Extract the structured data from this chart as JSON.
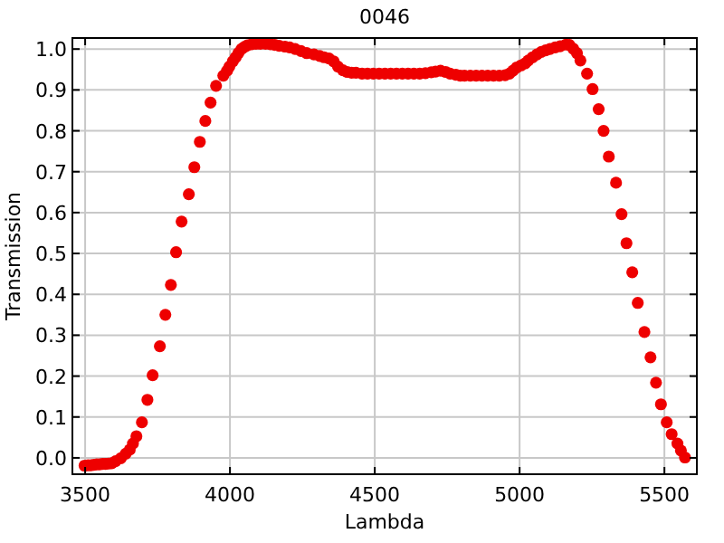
{
  "chart_data": {
    "type": "scatter",
    "title": "0046",
    "xlabel": "Lambda",
    "ylabel": "Transmission",
    "xlim": [
      3456,
      5612
    ],
    "ylim": [
      -0.04,
      1.027
    ],
    "xticks": [
      3500,
      4000,
      4500,
      5000,
      5500
    ],
    "yticks": [
      {
        "value": 0,
        "label": "0.0"
      },
      0.1,
      0.2,
      0.3,
      0.4,
      0.5,
      0.6,
      0.7,
      0.8,
      0.9,
      {
        "value": 1,
        "label": "1.0"
      }
    ],
    "grid": true,
    "marker": "circle",
    "series": [
      {
        "color": "#ee0000",
        "x": [
          3498,
          3510,
          3520,
          3530,
          3540,
          3550,
          3560,
          3570,
          3580,
          3592,
          3605,
          3623,
          3640,
          3654,
          3665,
          3677,
          3696,
          3715,
          3733,
          3758,
          3777,
          3796,
          3814,
          3833,
          3858,
          3877,
          3896,
          3915,
          3933,
          3952,
          3977,
          3990,
          3998,
          4010,
          4020,
          4029,
          4040,
          4050,
          4060,
          4075,
          4090,
          4105,
          4123,
          4140,
          4155,
          4170,
          4190,
          4206,
          4225,
          4245,
          4265,
          4290,
          4310,
          4325,
          4342,
          4358,
          4373,
          4390,
          4405,
          4420,
          4435,
          4456,
          4475,
          4495,
          4515,
          4535,
          4555,
          4575,
          4595,
          4615,
          4635,
          4655,
          4675,
          4695,
          4710,
          4727,
          4745,
          4760,
          4780,
          4795,
          4810,
          4830,
          4850,
          4870,
          4890,
          4910,
          4930,
          4950,
          4965,
          4977,
          4990,
          5005,
          5019,
          5030,
          5045,
          5060,
          5075,
          5090,
          5105,
          5123,
          5140,
          5160,
          5172,
          5185,
          5198,
          5210,
          5233,
          5252,
          5273,
          5290,
          5308,
          5333,
          5352,
          5369,
          5389,
          5408,
          5431,
          5452,
          5471,
          5488,
          5508,
          5525,
          5545,
          5557,
          5571
        ],
        "values": [
          -0.019,
          -0.018,
          -0.018,
          -0.017,
          -0.016,
          -0.016,
          -0.015,
          -0.015,
          -0.014,
          -0.013,
          -0.008,
          -0.001,
          0.01,
          0.02,
          0.035,
          0.053,
          0.087,
          0.142,
          0.202,
          0.273,
          0.35,
          0.423,
          0.503,
          0.578,
          0.645,
          0.711,
          0.773,
          0.824,
          0.869,
          0.91,
          0.935,
          0.947,
          0.957,
          0.97,
          0.98,
          0.99,
          1.0,
          1.005,
          1.009,
          1.012,
          1.013,
          1.013,
          1.013,
          1.012,
          1.01,
          1.008,
          1.006,
          1.004,
          1.0,
          0.995,
          0.99,
          0.987,
          0.983,
          0.98,
          0.977,
          0.97,
          0.957,
          0.948,
          0.944,
          0.942,
          0.942,
          0.94,
          0.94,
          0.94,
          0.94,
          0.94,
          0.94,
          0.94,
          0.94,
          0.94,
          0.94,
          0.94,
          0.941,
          0.943,
          0.945,
          0.947,
          0.944,
          0.94,
          0.937,
          0.935,
          0.935,
          0.935,
          0.935,
          0.935,
          0.935,
          0.935,
          0.935,
          0.936,
          0.94,
          0.947,
          0.955,
          0.96,
          0.965,
          0.972,
          0.98,
          0.987,
          0.993,
          0.997,
          1.0,
          1.004,
          1.007,
          1.011,
          1.01,
          1.001,
          0.99,
          0.972,
          0.94,
          0.902,
          0.853,
          0.8,
          0.737,
          0.673,
          0.596,
          0.525,
          0.454,
          0.379,
          0.308,
          0.246,
          0.184,
          0.131,
          0.087,
          0.058,
          0.035,
          0.018,
          0.001
        ]
      }
    ]
  }
}
